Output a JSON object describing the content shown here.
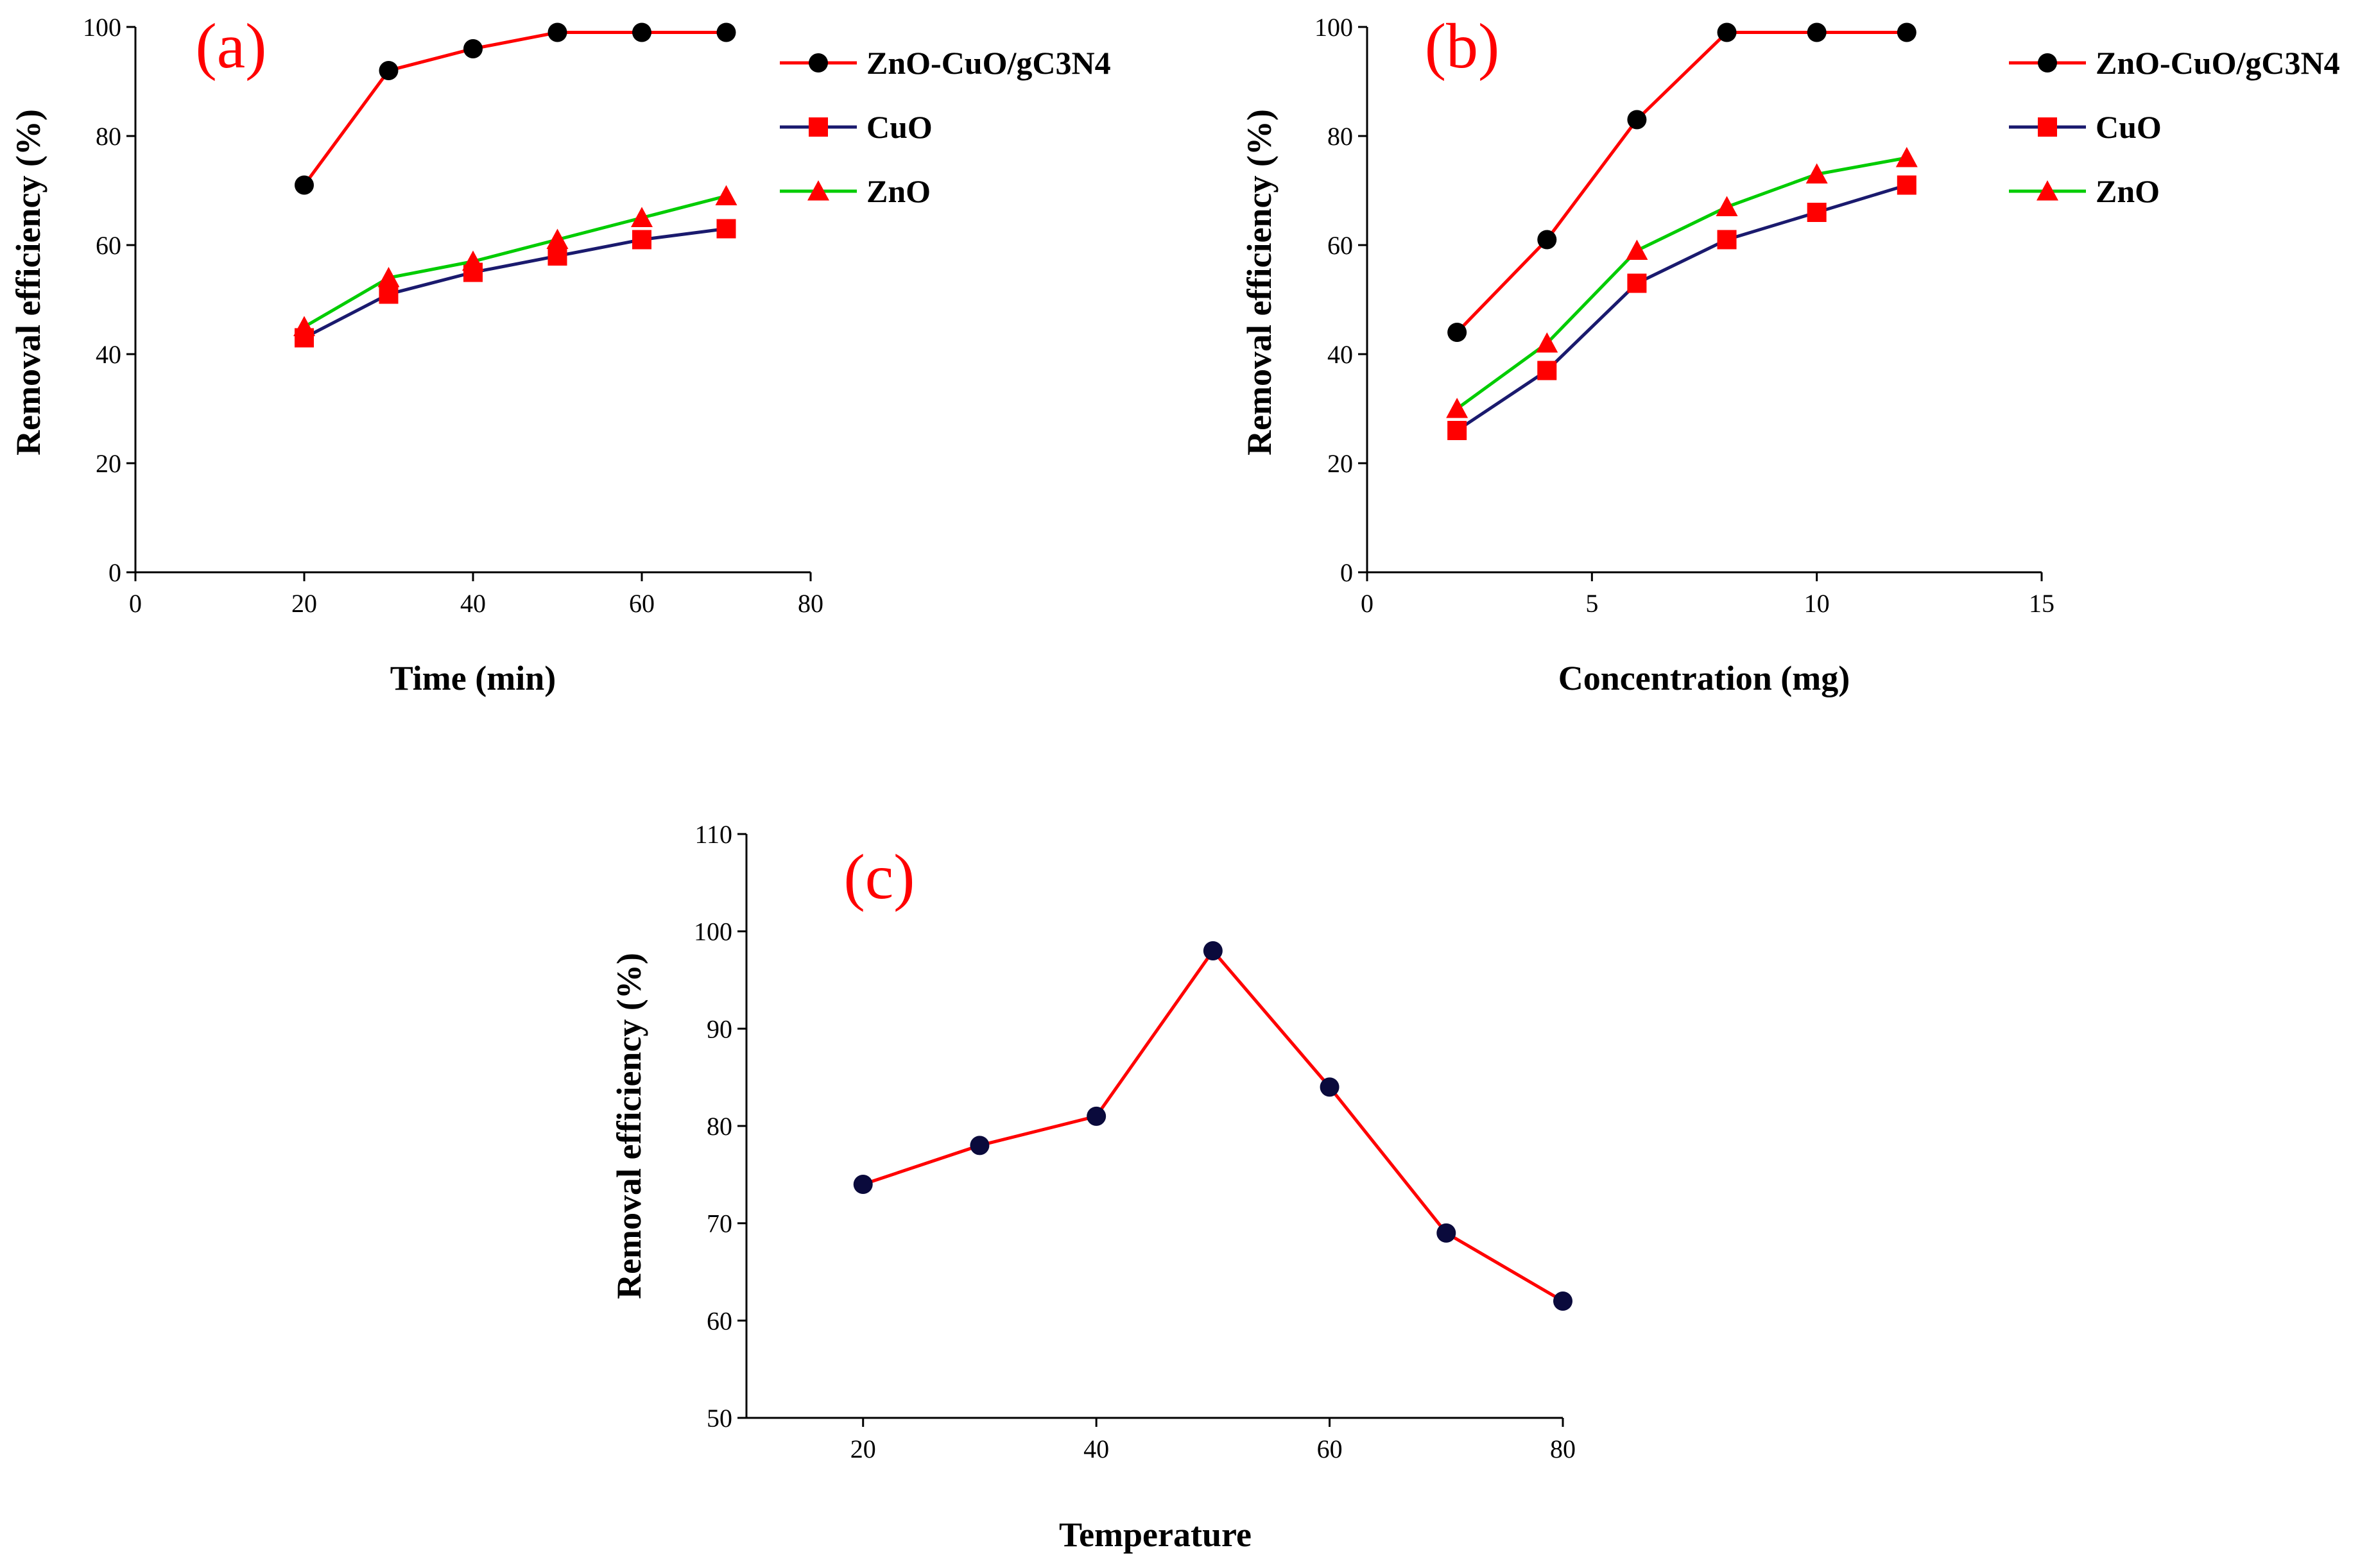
{
  "figure": {
    "background": "#ffffff"
  },
  "chart_data": [
    {
      "panel_label": "(a)",
      "type": "line",
      "xlabel": "Time (min)",
      "ylabel": "Removal efficiency (%)",
      "xlim": [
        0,
        80
      ],
      "ylim": [
        0,
        100
      ],
      "xticks": [
        0,
        20,
        40,
        60,
        80
      ],
      "yticks": [
        0,
        20,
        40,
        60,
        80,
        100
      ],
      "legend_position": "top-right-outside",
      "series": [
        {
          "name": "ZnO-CuO/gC3N4",
          "marker": "circle",
          "line_color": "#ff0000",
          "marker_color": "#000000",
          "x": [
            20,
            30,
            40,
            50,
            60,
            70
          ],
          "y": [
            71,
            92,
            96,
            99,
            99,
            99
          ]
        },
        {
          "name": "CuO",
          "marker": "square",
          "line_color": "#1a1a6e",
          "marker_color": "#ff0000",
          "x": [
            20,
            30,
            40,
            50,
            60,
            70
          ],
          "y": [
            43,
            51,
            55,
            58,
            61,
            63
          ]
        },
        {
          "name": "ZnO",
          "marker": "triangle",
          "line_color": "#00cc00",
          "marker_color": "#ff0000",
          "x": [
            20,
            30,
            40,
            50,
            60,
            70
          ],
          "y": [
            45,
            54,
            57,
            61,
            65,
            69
          ]
        }
      ]
    },
    {
      "panel_label": "(b)",
      "type": "line",
      "xlabel": "Concentration (mg)",
      "ylabel": "Removal efficiency (%)",
      "xlim": [
        0,
        15
      ],
      "ylim": [
        0,
        100
      ],
      "xticks": [
        0,
        5,
        10,
        15
      ],
      "yticks": [
        0,
        20,
        40,
        60,
        80,
        100
      ],
      "legend_position": "top-right-outside",
      "series": [
        {
          "name": "ZnO-CuO/gC3N4",
          "marker": "circle",
          "line_color": "#ff0000",
          "marker_color": "#000000",
          "x": [
            2,
            4,
            6,
            8,
            10,
            12
          ],
          "y": [
            44,
            61,
            83,
            99,
            99,
            99
          ]
        },
        {
          "name": "CuO",
          "marker": "square",
          "line_color": "#1a1a6e",
          "marker_color": "#ff0000",
          "x": [
            2,
            4,
            6,
            8,
            10,
            12
          ],
          "y": [
            26,
            37,
            53,
            61,
            66,
            71
          ]
        },
        {
          "name": "ZnO",
          "marker": "triangle",
          "line_color": "#00cc00",
          "marker_color": "#ff0000",
          "x": [
            2,
            4,
            6,
            8,
            10,
            12
          ],
          "y": [
            30,
            42,
            59,
            67,
            73,
            76
          ]
        }
      ]
    },
    {
      "panel_label": "(c)",
      "type": "line",
      "xlabel": "Temperature",
      "ylabel": "Removal efficiency (%)",
      "xlim": [
        10,
        80
      ],
      "ylim": [
        50,
        110
      ],
      "xticks": [
        20,
        40,
        60,
        80
      ],
      "yticks": [
        50,
        60,
        70,
        80,
        90,
        100,
        110
      ],
      "legend_position": "none",
      "series": [
        {
          "name": "",
          "marker": "circle",
          "line_color": "#ff0000",
          "marker_color": "#0a0a3c",
          "x": [
            20,
            30,
            40,
            50,
            60,
            70,
            80
          ],
          "y": [
            74,
            78,
            81,
            98,
            84,
            69,
            62
          ]
        }
      ]
    }
  ]
}
